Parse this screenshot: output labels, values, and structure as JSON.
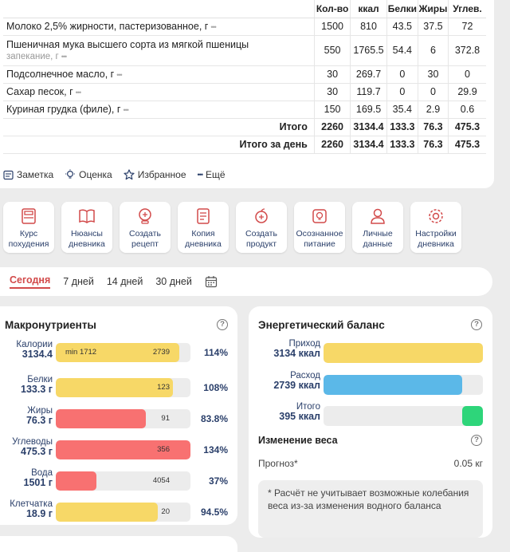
{
  "food_table": {
    "headers": [
      "Кол-во",
      "ккал",
      "Белки",
      "Жиры",
      "Углев."
    ],
    "rows": [
      {
        "name": "Молоко 2,5% жирности, пастеризованное, г",
        "sub": "",
        "qty": "1500",
        "kcal": "810",
        "protein": "43.5",
        "fat": "37.5",
        "carbs": "72"
      },
      {
        "name": "Пшеничная мука высшего сорта из мягкой пшеницы",
        "sub": "запекание, г",
        "qty": "550",
        "kcal": "1765.5",
        "protein": "54.4",
        "fat": "6",
        "carbs": "372.8"
      },
      {
        "name": "Подсолнечное масло, г",
        "sub": "",
        "qty": "30",
        "kcal": "269.7",
        "protein": "0",
        "fat": "30",
        "carbs": "0"
      },
      {
        "name": "Сахар песок, г",
        "sub": "",
        "qty": "30",
        "kcal": "119.7",
        "protein": "0",
        "fat": "0",
        "carbs": "29.9"
      },
      {
        "name": "Куриная грудка (филе), г",
        "sub": "",
        "qty": "150",
        "kcal": "169.5",
        "protein": "35.4",
        "fat": "2.9",
        "carbs": "0.6"
      }
    ],
    "total": {
      "label": "Итого",
      "qty": "2260",
      "kcal": "3134.4",
      "protein": "133.3",
      "fat": "76.3",
      "carbs": "475.3"
    },
    "day_total": {
      "label": "Итого за день",
      "qty": "2260",
      "kcal": "3134.4",
      "protein": "133.3",
      "fat": "76.3",
      "carbs": "475.3"
    },
    "more_glyph": "•••"
  },
  "actions": {
    "note": "Заметка",
    "rating": "Оценка",
    "favorite": "Избранное",
    "more": "Ещё"
  },
  "tiles": [
    {
      "label": "Курс\nпохудения",
      "icon": "scale-icon"
    },
    {
      "label": "Нюансы\nдневника",
      "icon": "book-icon"
    },
    {
      "label": "Создать\nрецепт",
      "icon": "recipe-icon"
    },
    {
      "label": "Копия\nдневника",
      "icon": "copy-icon"
    },
    {
      "label": "Создать\nпродукт",
      "icon": "apple-icon"
    },
    {
      "label": "Осознанное\nпитание",
      "icon": "bulb-icon"
    },
    {
      "label": "Личные\nданные",
      "icon": "person-icon"
    },
    {
      "label": "Настройки\nдневника",
      "icon": "gear-icon"
    }
  ],
  "periods": {
    "today": "Сегодня",
    "d7": "7 дней",
    "d14": "14 дней",
    "d30": "30 дней"
  },
  "macros": {
    "title": "Макронутриенты",
    "help": "?",
    "items": [
      {
        "name": "Калории",
        "value": "3134.4",
        "fill_pct": 0.92,
        "color": "#f7d867",
        "min_text": "min 1712",
        "target": "2739",
        "pct": "114%"
      },
      {
        "name": "Белки",
        "value": "133.3 г",
        "fill_pct": 0.87,
        "color": "#f7d867",
        "min_text": "",
        "target": "123",
        "pct": "108%"
      },
      {
        "name": "Жиры",
        "value": "76.3 г",
        "fill_pct": 0.67,
        "color": "#f87171",
        "min_text": "",
        "target": "91",
        "pct": "83.8%"
      },
      {
        "name": "Углеводы",
        "value": "475.3 г",
        "fill_pct": 1.0,
        "color": "#f87171",
        "min_text": "",
        "target": "356",
        "pct": "134%"
      },
      {
        "name": "Вода",
        "value": "1501 г",
        "fill_pct": 0.3,
        "color": "#f87171",
        "min_text": "",
        "target": "4054",
        "pct": "37%"
      },
      {
        "name": "Клетчатка",
        "value": "18.9 г",
        "fill_pct": 0.76,
        "color": "#f7d867",
        "min_text": "",
        "target": "20",
        "pct": "94.5%"
      }
    ]
  },
  "energy": {
    "title": "Энергетический баланс",
    "help": "?",
    "items": [
      {
        "name": "Приход",
        "value": "3134 ккал",
        "fill_pct": 1.0,
        "color": "#f7d867",
        "align": "left"
      },
      {
        "name": "Расход",
        "value": "2739 ккал",
        "fill_pct": 0.87,
        "color": "#5bb8e8",
        "align": "left"
      },
      {
        "name": "Итого",
        "value": "395 ккал",
        "fill_pct": 0.13,
        "color": "#2ed57a",
        "align": "right"
      }
    ],
    "weight_title": "Изменение веса",
    "forecast_label": "Прогноз*",
    "forecast_value": "0.05 кг",
    "note": "* Расчёт не учитывает возможные колебания веса из-за изменения водного баланса"
  }
}
